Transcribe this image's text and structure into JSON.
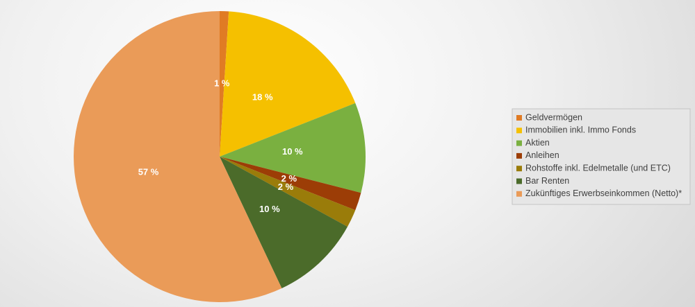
{
  "chart_data": {
    "type": "pie",
    "categories": [
      "Geldvermögen",
      "Immobilien inkl. Immo Fonds",
      "Aktien",
      "Anleihen",
      "Rohstoffe inkl. Edelmetalle (und ETC)",
      "Bar Renten",
      "Zukünftiges Erwerbseinkommen (Netto)*"
    ],
    "values": [
      1,
      18,
      10,
      2,
      2,
      10,
      57
    ],
    "value_labels": [
      "1 %",
      "18 %",
      "10 %",
      "2 %",
      "2 %",
      "10 %",
      "57 %"
    ],
    "colors": [
      "#e07b24",
      "#f5c000",
      "#7ab040",
      "#9c3d06",
      "#9a7c0a",
      "#4b6b2a",
      "#ea9b58"
    ],
    "legend": "right"
  }
}
